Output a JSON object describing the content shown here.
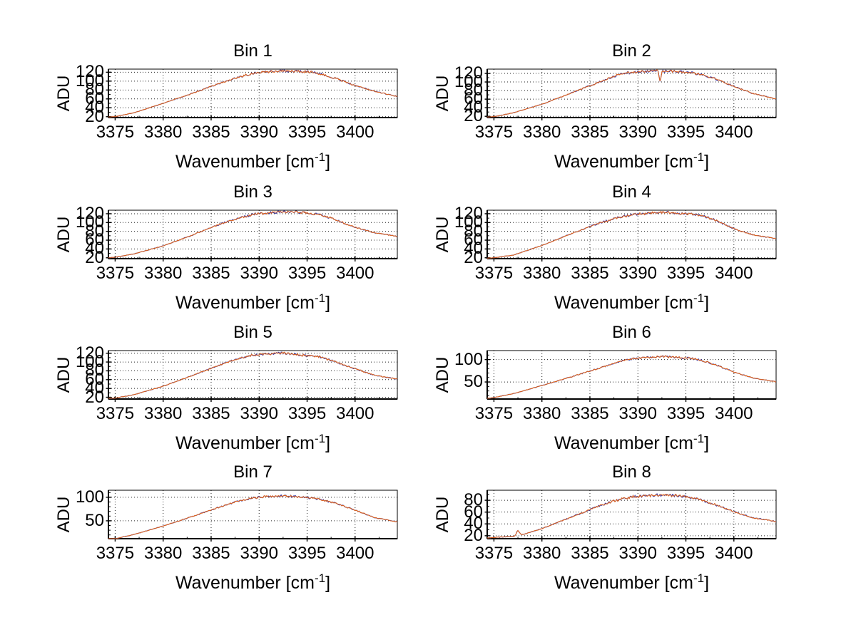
{
  "figure": {
    "background": "#ffffff"
  },
  "colors": {
    "axis": "#000000",
    "grid": "#222222",
    "text": "#000000",
    "series_blue": "#3232a5",
    "series_orange": "#dd6420"
  },
  "axis_labels": {
    "ylabel": "ADU",
    "xlabel_pre": "Wavenumber [cm",
    "xlabel_sup": "-1",
    "xlabel_post": "]"
  },
  "chart_data": [
    {
      "type": "line",
      "title": "Bin 1",
      "xlabel": "Wavenumber [cm^-1]",
      "ylabel": "ADU",
      "xlim": [
        3374.3,
        3404.4
      ],
      "ylim": [
        18,
        127
      ],
      "xticks": [
        3375,
        3380,
        3385,
        3390,
        3395,
        3400
      ],
      "yticks": [
        20,
        40,
        60,
        80,
        100,
        120
      ],
      "x_minor_step": 2.5,
      "y_minor_step": 10,
      "grid": true,
      "seed": 1,
      "noise_base": 0.5,
      "noise_peak": 2.6,
      "series": [
        {
          "name": "line-1",
          "color": "#3232a5"
        },
        {
          "name": "line-2",
          "color": "#dd6420"
        }
      ],
      "envelope": [
        [
          3374,
          19
        ],
        [
          3375,
          20
        ],
        [
          3377,
          29
        ],
        [
          3380,
          50
        ],
        [
          3383,
          72
        ],
        [
          3386,
          96
        ],
        [
          3388,
          110
        ],
        [
          3389.5,
          118
        ],
        [
          3391,
          121
        ],
        [
          3392.5,
          123
        ],
        [
          3394,
          122
        ],
        [
          3395.5,
          120
        ],
        [
          3396.5,
          116
        ],
        [
          3398,
          106
        ],
        [
          3400,
          90
        ],
        [
          3402,
          77
        ],
        [
          3404.5,
          65
        ]
      ]
    },
    {
      "type": "line",
      "title": "Bin 2",
      "xlabel": "Wavenumber [cm^-1]",
      "ylabel": "ADU",
      "xlim": [
        3374.3,
        3404.4
      ],
      "ylim": [
        17,
        130
      ],
      "xticks": [
        3375,
        3380,
        3385,
        3390,
        3395,
        3400
      ],
      "yticks": [
        20,
        40,
        60,
        80,
        100,
        120
      ],
      "x_minor_step": 2.5,
      "y_minor_step": 10,
      "grid": true,
      "seed": 2,
      "noise_base": 0.5,
      "noise_peak": 2.8,
      "series": [
        {
          "name": "line-1",
          "color": "#3232a5"
        },
        {
          "name": "line-2",
          "color": "#dd6420"
        }
      ],
      "dip": {
        "x": 3392.3,
        "depth": 23,
        "sigma": 0.1
      },
      "envelope": [
        [
          3374,
          18
        ],
        [
          3375,
          19
        ],
        [
          3377,
          28
        ],
        [
          3380,
          48
        ],
        [
          3380.6,
          53
        ],
        [
          3383,
          74
        ],
        [
          3386,
          100
        ],
        [
          3387.5,
          113
        ],
        [
          3388.5,
          120
        ],
        [
          3390,
          124
        ],
        [
          3391.5,
          126
        ],
        [
          3393,
          125
        ],
        [
          3394.5,
          124
        ],
        [
          3396,
          120
        ],
        [
          3397,
          115
        ],
        [
          3398,
          108
        ],
        [
          3400,
          90
        ],
        [
          3402,
          73
        ],
        [
          3404.5,
          60
        ]
      ]
    },
    {
      "type": "line",
      "title": "Bin 3",
      "xlabel": "Wavenumber [cm^-1]",
      "ylabel": "ADU",
      "xlim": [
        3374.3,
        3404.4
      ],
      "ylim": [
        18,
        128
      ],
      "xticks": [
        3375,
        3380,
        3385,
        3390,
        3395,
        3400
      ],
      "yticks": [
        20,
        40,
        60,
        80,
        100,
        120
      ],
      "x_minor_step": 2.5,
      "y_minor_step": 10,
      "grid": true,
      "seed": 3,
      "noise_base": 0.5,
      "noise_peak": 2.6,
      "series": [
        {
          "name": "line-1",
          "color": "#3232a5"
        },
        {
          "name": "line-2",
          "color": "#dd6420"
        }
      ],
      "envelope": [
        [
          3374,
          20
        ],
        [
          3375,
          21
        ],
        [
          3377,
          29
        ],
        [
          3380,
          47
        ],
        [
          3381,
          55
        ],
        [
          3383,
          71
        ],
        [
          3386,
          97
        ],
        [
          3388,
          111
        ],
        [
          3389.5,
          119
        ],
        [
          3391,
          122
        ],
        [
          3392.5,
          125
        ],
        [
          3394,
          124
        ],
        [
          3395.5,
          121
        ],
        [
          3396.5,
          117
        ],
        [
          3398,
          106
        ],
        [
          3400,
          89
        ],
        [
          3402,
          77
        ],
        [
          3404.5,
          68
        ]
      ]
    },
    {
      "type": "line",
      "title": "Bin 4",
      "xlabel": "Wavenumber [cm^-1]",
      "ylabel": "ADU",
      "xlim": [
        3374.3,
        3404.4
      ],
      "ylim": [
        18,
        128
      ],
      "xticks": [
        3375,
        3380,
        3385,
        3390,
        3395,
        3400
      ],
      "yticks": [
        20,
        40,
        60,
        80,
        100,
        120
      ],
      "x_minor_step": 2.5,
      "y_minor_step": 10,
      "grid": true,
      "seed": 4,
      "noise_base": 0.5,
      "noise_peak": 2.7,
      "series": [
        {
          "name": "line-1",
          "color": "#3232a5"
        },
        {
          "name": "line-2",
          "color": "#dd6420"
        }
      ],
      "envelope": [
        [
          3374,
          19
        ],
        [
          3375,
          20
        ],
        [
          3377,
          26
        ],
        [
          3380,
          48
        ],
        [
          3383,
          74
        ],
        [
          3386,
          99
        ],
        [
          3388,
          112
        ],
        [
          3389.5,
          118
        ],
        [
          3391,
          121
        ],
        [
          3392.5,
          123
        ],
        [
          3394,
          122
        ],
        [
          3395.5,
          119
        ],
        [
          3396.8,
          115
        ],
        [
          3398,
          106
        ],
        [
          3400,
          86
        ],
        [
          3402,
          72
        ],
        [
          3404.5,
          63
        ]
      ]
    },
    {
      "type": "line",
      "title": "Bin 5",
      "xlabel": "Wavenumber [cm^-1]",
      "ylabel": "ADU",
      "xlim": [
        3374.3,
        3404.4
      ],
      "ylim": [
        16,
        126
      ],
      "xticks": [
        3375,
        3380,
        3385,
        3390,
        3395,
        3400
      ],
      "yticks": [
        20,
        40,
        60,
        80,
        100,
        120
      ],
      "x_minor_step": 2.5,
      "y_minor_step": 10,
      "grid": true,
      "seed": 5,
      "noise_base": 0.5,
      "noise_peak": 2.6,
      "series": [
        {
          "name": "line-1",
          "color": "#3232a5"
        },
        {
          "name": "line-2",
          "color": "#dd6420"
        }
      ],
      "envelope": [
        [
          3374,
          17
        ],
        [
          3375,
          18
        ],
        [
          3377,
          26
        ],
        [
          3380,
          45
        ],
        [
          3383,
          69
        ],
        [
          3386,
          94
        ],
        [
          3388,
          109
        ],
        [
          3389.5,
          116
        ],
        [
          3391,
          119
        ],
        [
          3392.5,
          120
        ],
        [
          3394,
          117
        ],
        [
          3395,
          114
        ],
        [
          3396.3,
          112
        ],
        [
          3398,
          100
        ],
        [
          3400,
          85
        ],
        [
          3402,
          70
        ],
        [
          3404.5,
          61
        ]
      ]
    },
    {
      "type": "line",
      "title": "Bin 6",
      "xlabel": "Wavenumber [cm^-1]",
      "ylabel": "ADU",
      "xlim": [
        3374.3,
        3404.4
      ],
      "ylim": [
        12,
        120
      ],
      "xticks": [
        3375,
        3380,
        3385,
        3390,
        3395,
        3400
      ],
      "yticks": [
        50,
        100
      ],
      "x_minor_step": 2.5,
      "y_minor_step": 10,
      "grid": true,
      "seed": 6,
      "noise_base": 0.5,
      "noise_peak": 2.3,
      "series": [
        {
          "name": "line-1",
          "color": "#3232a5"
        },
        {
          "name": "line-2",
          "color": "#dd6420"
        }
      ],
      "envelope": [
        [
          3374,
          13
        ],
        [
          3375,
          15
        ],
        [
          3377,
          24
        ],
        [
          3380,
          42
        ],
        [
          3383,
          61
        ],
        [
          3386,
          81
        ],
        [
          3388,
          95
        ],
        [
          3389.5,
          102
        ],
        [
          3391,
          105
        ],
        [
          3392.5,
          107
        ],
        [
          3394,
          105
        ],
        [
          3395.5,
          103
        ],
        [
          3396.5,
          99
        ],
        [
          3398,
          89
        ],
        [
          3400,
          72
        ],
        [
          3402,
          59
        ],
        [
          3404.5,
          50
        ]
      ]
    },
    {
      "type": "line",
      "title": "Bin 7",
      "xlabel": "Wavenumber [cm^-1]",
      "ylabel": "ADU",
      "xlim": [
        3374.3,
        3404.4
      ],
      "ylim": [
        12,
        115
      ],
      "xticks": [
        3375,
        3380,
        3385,
        3390,
        3395,
        3400
      ],
      "yticks": [
        50,
        100
      ],
      "x_minor_step": 2.5,
      "y_minor_step": 10,
      "grid": true,
      "seed": 7,
      "noise_base": 0.5,
      "noise_peak": 2.3,
      "series": [
        {
          "name": "line-1",
          "color": "#3232a5"
        },
        {
          "name": "line-2",
          "color": "#dd6420"
        }
      ],
      "envelope": [
        [
          3374,
          11
        ],
        [
          3375,
          12
        ],
        [
          3377,
          21
        ],
        [
          3380,
          39
        ],
        [
          3383,
          59
        ],
        [
          3386,
          80
        ],
        [
          3388,
          93
        ],
        [
          3389.5,
          99
        ],
        [
          3391,
          102
        ],
        [
          3392.5,
          103
        ],
        [
          3394,
          101
        ],
        [
          3395,
          99
        ],
        [
          3396.5,
          95
        ],
        [
          3398,
          87
        ],
        [
          3400,
          73
        ],
        [
          3402,
          57
        ],
        [
          3404.5,
          47
        ]
      ]
    },
    {
      "type": "line",
      "title": "Bin 8",
      "xlabel": "Wavenumber [cm^-1]",
      "ylabel": "ADU",
      "xlim": [
        3374.3,
        3404.4
      ],
      "ylim": [
        15,
        97
      ],
      "xticks": [
        3375,
        3380,
        3385,
        3390,
        3395,
        3400
      ],
      "yticks": [
        20,
        40,
        60,
        80
      ],
      "x_minor_step": 2.5,
      "y_minor_step": 10,
      "grid": true,
      "seed": 8,
      "noise_base": 0.6,
      "noise_peak": 2.1,
      "series": [
        {
          "name": "line-1",
          "color": "#3232a5"
        },
        {
          "name": "line-2",
          "color": "#dd6420"
        }
      ],
      "blip": {
        "x": 3377.5,
        "height": 8,
        "sigma": 0.15
      },
      "envelope": [
        [
          3374,
          16
        ],
        [
          3375,
          17
        ],
        [
          3377,
          19
        ],
        [
          3378,
          22
        ],
        [
          3380,
          32
        ],
        [
          3383,
          51
        ],
        [
          3386,
          71
        ],
        [
          3388,
          81
        ],
        [
          3389.5,
          86
        ],
        [
          3391,
          88
        ],
        [
          3392.5,
          89
        ],
        [
          3394,
          88
        ],
        [
          3395,
          86
        ],
        [
          3396,
          83
        ],
        [
          3398,
          73
        ],
        [
          3400,
          61
        ],
        [
          3402,
          50
        ],
        [
          3404.5,
          44
        ]
      ]
    }
  ]
}
